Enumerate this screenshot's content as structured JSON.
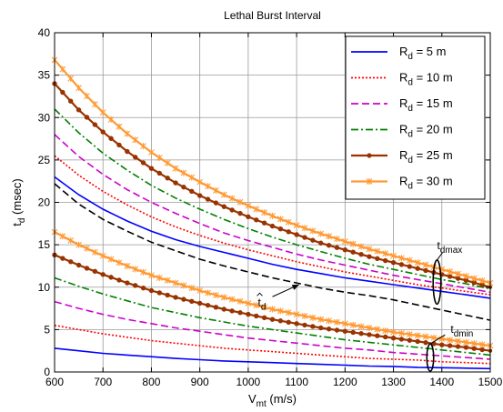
{
  "chart_data": {
    "type": "line",
    "title": "Lethal Burst Interval",
    "xlabel": {
      "main": "V",
      "sub": "mt",
      "unit": " (m/s)"
    },
    "ylabel": {
      "main": "t",
      "sub": "d",
      "unit": " (msec)"
    },
    "xlim": [
      600,
      1500
    ],
    "ylim": [
      0,
      40
    ],
    "xticks": [
      600,
      700,
      800,
      900,
      1000,
      1100,
      1200,
      1300,
      1400,
      1500
    ],
    "yticks": [
      0,
      5,
      10,
      15,
      20,
      25,
      30,
      35,
      40
    ],
    "grid": true,
    "legend": {
      "placement": "top-right",
      "entries": [
        {
          "sym": "R",
          "sub": "d",
          "text": " =  5  m",
          "color": "#0000ff",
          "style": "solid",
          "marker": "none"
        },
        {
          "sym": "R",
          "sub": "d",
          "text": " = 10  m",
          "color": "#ff0000",
          "style": "dotted",
          "marker": "none"
        },
        {
          "sym": "R",
          "sub": "d",
          "text": " = 15  m",
          "color": "#cc00cc",
          "style": "dashed",
          "marker": "none"
        },
        {
          "sym": "R",
          "sub": "d",
          "text": " = 20  m",
          "color": "#008000",
          "style": "dashdot",
          "marker": "none"
        },
        {
          "sym": "R",
          "sub": "d",
          "text": " = 25  m",
          "color": "#993300",
          "style": "solid",
          "marker": "dot"
        },
        {
          "sym": "R",
          "sub": "d",
          "text": " = 30  m",
          "color": "#ff9933",
          "style": "solid",
          "marker": "x"
        }
      ]
    },
    "x": [
      600,
      650,
      700,
      750,
      800,
      850,
      900,
      950,
      1000,
      1050,
      1100,
      1150,
      1200,
      1250,
      1300,
      1350,
      1400,
      1450,
      1500
    ],
    "series": [
      {
        "group": "max",
        "legend_index": 0,
        "values": [
          23.0,
          20.9,
          19.2,
          17.8,
          16.6,
          15.6,
          14.8,
          14.1,
          13.4,
          12.7,
          12.1,
          11.6,
          11.1,
          10.7,
          10.3,
          9.9,
          9.5,
          9.1,
          8.7
        ]
      },
      {
        "group": "max",
        "legend_index": 1,
        "values": [
          25.5,
          23.2,
          21.3,
          19.7,
          18.3,
          17.1,
          16.1,
          15.2,
          14.4,
          13.7,
          13.0,
          12.4,
          11.8,
          11.3,
          10.8,
          10.3,
          9.9,
          9.5,
          9.1
        ]
      },
      {
        "group": "max",
        "legend_index": 2,
        "values": [
          28.0,
          25.4,
          23.3,
          21.5,
          20.0,
          18.7,
          17.5,
          16.4,
          15.5,
          14.7,
          13.9,
          13.2,
          12.6,
          12.0,
          11.4,
          10.9,
          10.4,
          9.9,
          9.4
        ]
      },
      {
        "group": "max",
        "legend_index": 3,
        "values": [
          31.0,
          28.2,
          25.8,
          23.8,
          22.0,
          20.5,
          19.2,
          18.0,
          16.9,
          15.9,
          15.0,
          14.2,
          13.4,
          12.7,
          12.1,
          11.5,
          10.9,
          10.4,
          9.8
        ]
      },
      {
        "group": "max",
        "legend_index": 4,
        "values": [
          34.0,
          30.9,
          28.3,
          26.0,
          24.0,
          22.3,
          20.8,
          19.5,
          18.3,
          17.2,
          16.2,
          15.2,
          14.4,
          13.6,
          12.9,
          12.2,
          11.5,
          10.8,
          10.0
        ]
      },
      {
        "group": "max",
        "legend_index": 5,
        "values": [
          36.8,
          33.5,
          30.6,
          28.1,
          25.9,
          24.0,
          22.4,
          20.9,
          19.6,
          18.4,
          17.3,
          16.3,
          15.4,
          14.5,
          13.7,
          12.9,
          12.1,
          11.3,
          10.5
        ]
      },
      {
        "group": "min",
        "legend_index": 0,
        "values": [
          2.8,
          2.5,
          2.2,
          2.0,
          1.8,
          1.6,
          1.45,
          1.3,
          1.2,
          1.1,
          1.0,
          0.9,
          0.8,
          0.7,
          0.65,
          0.55,
          0.5,
          0.45,
          0.4
        ]
      },
      {
        "group": "min",
        "legend_index": 1,
        "values": [
          5.5,
          5.0,
          4.5,
          4.1,
          3.7,
          3.4,
          3.1,
          2.8,
          2.6,
          2.4,
          2.2,
          2.0,
          1.8,
          1.6,
          1.5,
          1.4,
          1.2,
          1.1,
          1.0
        ]
      },
      {
        "group": "min",
        "legend_index": 2,
        "values": [
          8.3,
          7.5,
          6.8,
          6.2,
          5.7,
          5.2,
          4.8,
          4.4,
          4.0,
          3.7,
          3.4,
          3.1,
          2.8,
          2.6,
          2.3,
          2.1,
          1.9,
          1.7,
          1.5
        ]
      },
      {
        "group": "min",
        "legend_index": 3,
        "values": [
          11.1,
          10.1,
          9.2,
          8.4,
          7.6,
          7.0,
          6.4,
          5.9,
          5.4,
          5.0,
          4.6,
          4.2,
          3.8,
          3.5,
          3.2,
          2.9,
          2.6,
          2.3,
          2.0
        ]
      },
      {
        "group": "min",
        "legend_index": 4,
        "values": [
          13.8,
          12.6,
          11.5,
          10.5,
          9.6,
          8.8,
          8.1,
          7.4,
          6.8,
          6.2,
          5.7,
          5.2,
          4.8,
          4.4,
          4.0,
          3.6,
          3.2,
          2.9,
          2.5
        ]
      },
      {
        "group": "min",
        "legend_index": 5,
        "values": [
          16.5,
          15.0,
          13.7,
          12.5,
          11.4,
          10.5,
          9.6,
          8.8,
          8.1,
          7.4,
          6.8,
          6.2,
          5.7,
          5.2,
          4.7,
          4.3,
          3.9,
          3.5,
          3.1
        ]
      },
      {
        "group": "estimate",
        "color": "#000000",
        "style": "dashed",
        "values": [
          22.2,
          19.8,
          18.0,
          16.6,
          15.3,
          14.3,
          13.3,
          12.5,
          11.8,
          11.1,
          10.5,
          9.9,
          9.4,
          9.0,
          8.5,
          7.9,
          7.3,
          6.7,
          6.1
        ]
      }
    ],
    "annotations": [
      {
        "id": "td-hat",
        "sym": "t",
        "sub": "d",
        "hat": true,
        "x": 1020,
        "y": 7.8,
        "arrow_to": [
          1105,
          10.3
        ]
      },
      {
        "id": "tdmax",
        "sym": "t",
        "sub": "dmax",
        "x": 1390,
        "y": 14.5,
        "ellipse": {
          "cx": 1390,
          "cy": 10.6,
          "rx": 8,
          "ry": 2.6
        }
      },
      {
        "id": "tdmin",
        "sym": "t",
        "sub": "dmin",
        "x": 1418,
        "y": 4.6,
        "ellipse": {
          "cx": 1376,
          "cy": 1.7,
          "rx": 7,
          "ry": 1.6
        }
      }
    ]
  }
}
